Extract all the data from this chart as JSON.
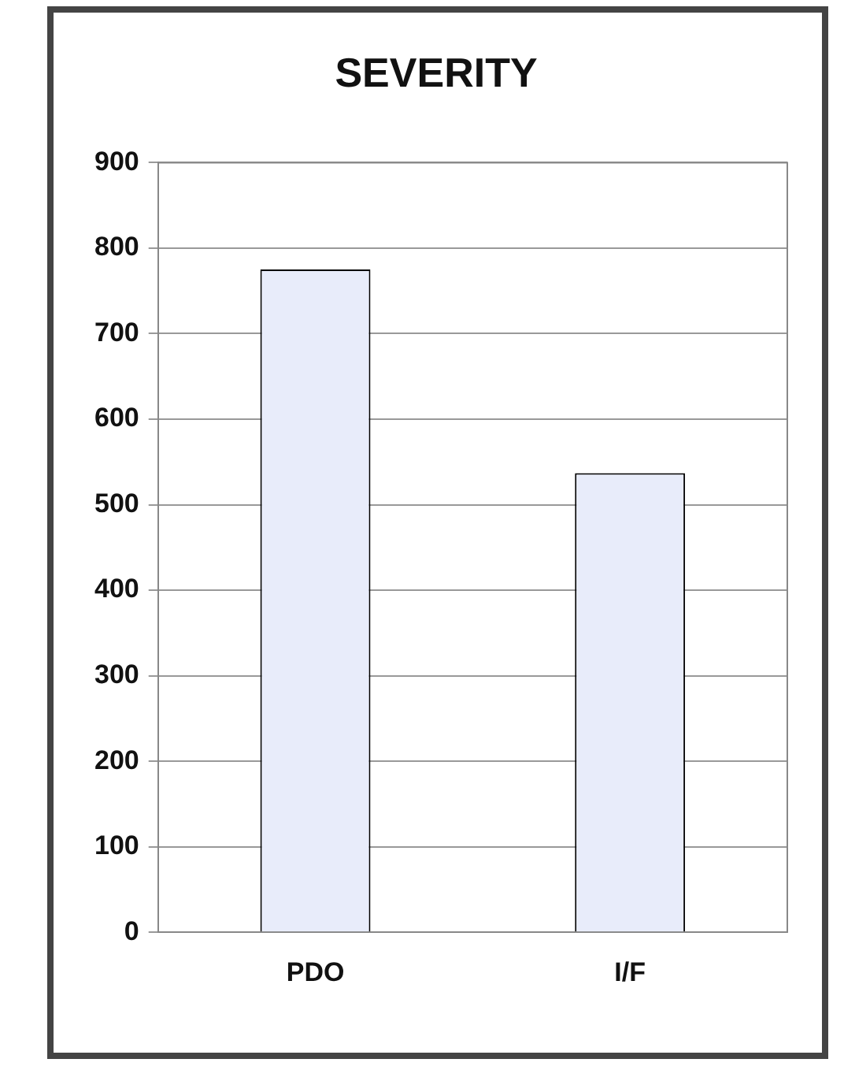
{
  "chart_data": {
    "type": "bar",
    "title": "SEVERITY",
    "categories": [
      "PDO",
      "I/F"
    ],
    "values": [
      775,
      537
    ],
    "color": "#e8ecfa",
    "ylim": [
      0,
      900
    ],
    "yticks": [
      0,
      100,
      200,
      300,
      400,
      500,
      600,
      700,
      800,
      900
    ],
    "grid": "y",
    "legend": false
  }
}
